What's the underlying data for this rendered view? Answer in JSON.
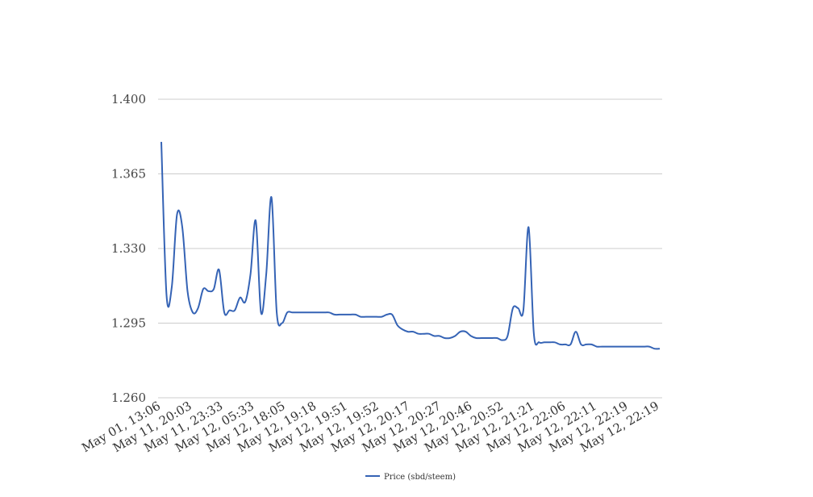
{
  "chart_data": {
    "type": "line",
    "title": "",
    "xlabel": "",
    "ylabel": "",
    "ylim": [
      1.26,
      1.4
    ],
    "yticks": [
      "1.260",
      "1.295",
      "1.330",
      "1.365",
      "1.400"
    ],
    "xtick_labels": [
      "May 01, 13:06",
      "May 11, 20:03",
      "May 11, 23:33",
      "May 12, 05:33",
      "May 12, 18:05",
      "May 12, 19:18",
      "May 12, 19:51",
      "May 12, 19:52",
      "May 12, 20:17",
      "May 12, 20:27",
      "May 12, 20:46",
      "May 12, 20:52",
      "May 12, 21:21",
      "May 12, 22:06",
      "May 12, 22:11",
      "May 12, 22:19",
      "May 12, 22:19"
    ],
    "grid": true,
    "legend_position": "bottom",
    "series": [
      {
        "name": "Price (sbd/steem)",
        "color": "#3563b5",
        "values": [
          1.38,
          1.308,
          1.312,
          1.346,
          1.34,
          1.31,
          1.3,
          1.302,
          1.311,
          1.31,
          1.311,
          1.32,
          1.3,
          1.301,
          1.301,
          1.307,
          1.305,
          1.318,
          1.343,
          1.3,
          1.318,
          1.354,
          1.3,
          1.295,
          1.3,
          1.3,
          1.3,
          1.3,
          1.3,
          1.3,
          1.3,
          1.3,
          1.3,
          1.299,
          1.299,
          1.299,
          1.299,
          1.299,
          1.298,
          1.298,
          1.298,
          1.298,
          1.298,
          1.299,
          1.299,
          1.294,
          1.292,
          1.291,
          1.291,
          1.29,
          1.29,
          1.29,
          1.289,
          1.289,
          1.288,
          1.288,
          1.289,
          1.291,
          1.291,
          1.289,
          1.288,
          1.288,
          1.288,
          1.288,
          1.288,
          1.287,
          1.289,
          1.302,
          1.302,
          1.301,
          1.34,
          1.29,
          1.286,
          1.286,
          1.286,
          1.286,
          1.285,
          1.285,
          1.285,
          1.291,
          1.285,
          1.285,
          1.285,
          1.284,
          1.284,
          1.284,
          1.284,
          1.284,
          1.284,
          1.284,
          1.284,
          1.284,
          1.284,
          1.284,
          1.283,
          1.283
        ]
      }
    ]
  }
}
